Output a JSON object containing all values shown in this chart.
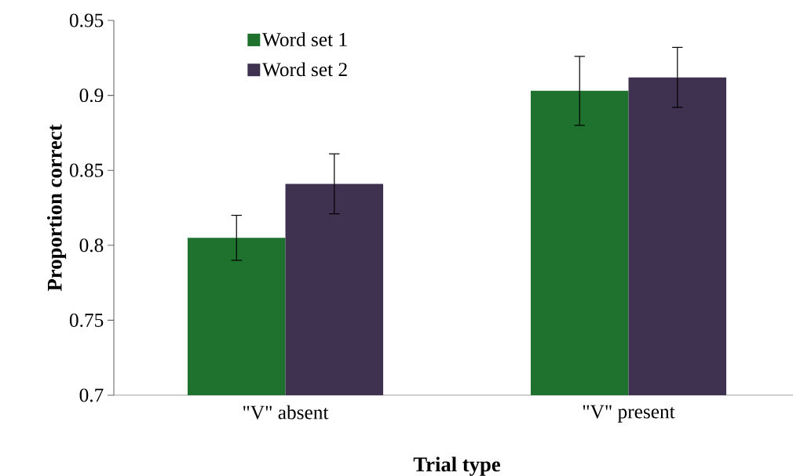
{
  "chart_data": {
    "type": "bar",
    "xlabel": "Trial type",
    "ylabel": "Proportion correct",
    "categories": [
      "\"V\" absent",
      "\"V\" present"
    ],
    "series": [
      {
        "name": "Word set 1",
        "color": "#1e722e",
        "values": [
          0.805,
          0.903
        ],
        "errors": [
          0.015,
          0.023
        ]
      },
      {
        "name": "Word set 2",
        "color": "#3f3150",
        "values": [
          0.841,
          0.912
        ],
        "errors": [
          0.02,
          0.02
        ]
      }
    ],
    "ylim": [
      0.7,
      0.95
    ],
    "yticks": [
      0.7,
      0.75,
      0.8,
      0.85,
      0.9,
      0.95
    ],
    "grid": false,
    "legend": "top left"
  }
}
